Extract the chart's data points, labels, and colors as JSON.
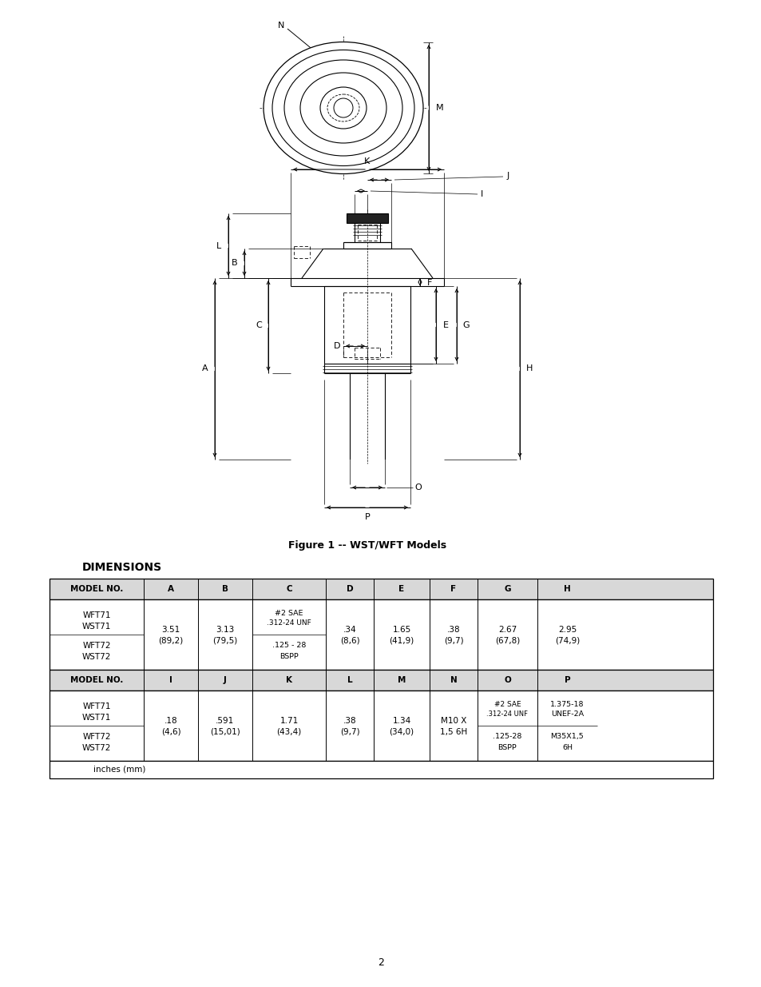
{
  "page_bg": "#ffffff",
  "fig_caption": "Figure 1 -- WST/WFT Models",
  "dimensions_title": "DIMENSIONS",
  "table_header1": [
    "MODEL NO.",
    "A",
    "B",
    "C",
    "D",
    "E",
    "F",
    "G",
    "H"
  ],
  "table_header2": [
    "MODEL NO.",
    "I",
    "J",
    "K",
    "L",
    "M",
    "N",
    "O",
    "P"
  ],
  "footer": "inches (mm)"
}
